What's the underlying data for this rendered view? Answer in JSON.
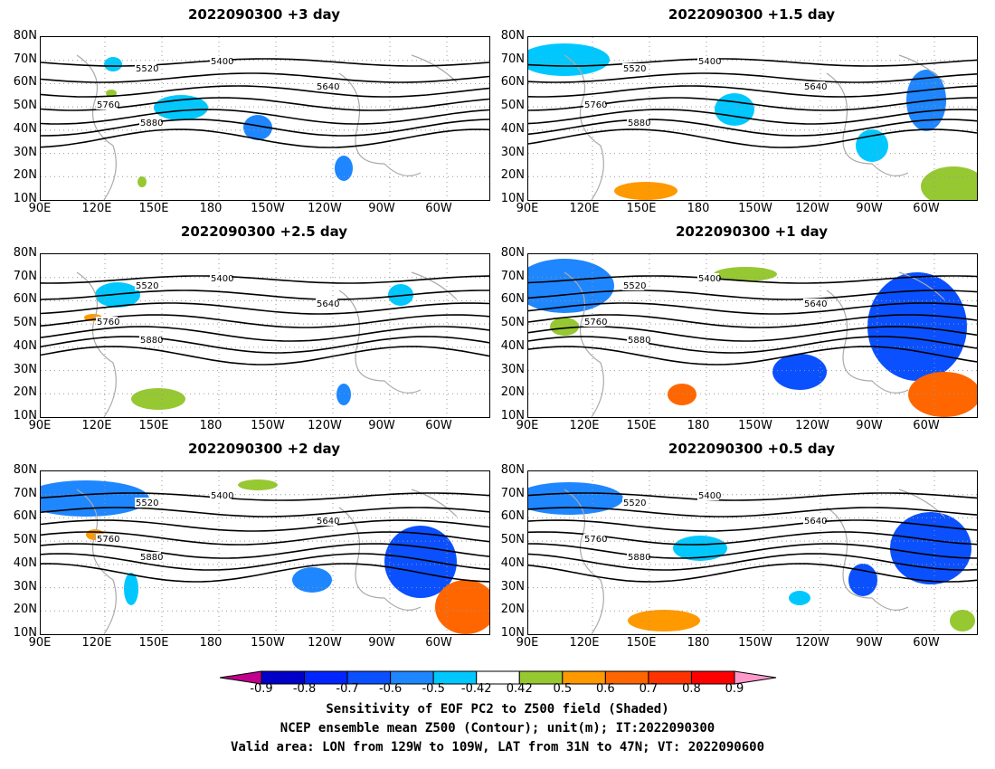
{
  "panels": [
    {
      "title": "2022090300  +3 day"
    },
    {
      "title": "2022090300  +1.5 day"
    },
    {
      "title": "2022090300  +2.5 day"
    },
    {
      "title": "2022090300  +1 day"
    },
    {
      "title": "2022090300  +2 day"
    },
    {
      "title": "2022090300  +0.5 day"
    }
  ],
  "lat_ticks": [
    "80N",
    "70N",
    "60N",
    "50N",
    "40N",
    "30N",
    "20N",
    "10N"
  ],
  "lon_ticks": [
    "90E",
    "120E",
    "150E",
    "180",
    "150W",
    "120W",
    "90W",
    "60W"
  ],
  "contour_labels": [
    "5400",
    "5520",
    "5640",
    "5760",
    "5880"
  ],
  "colorbar": {
    "levels": [
      "-0.9",
      "-0.8",
      "-0.7",
      "-0.6",
      "-0.5",
      "-0.42",
      "0.42",
      "0.5",
      "0.6",
      "0.7",
      "0.8",
      "0.9"
    ],
    "colors": [
      "#c2008e",
      "#0000c8",
      "#0025ff",
      "#0a50ff",
      "#1e86ff",
      "#00c8ff",
      "#ffffff",
      "#96c832",
      "#ff9900",
      "#ff6600",
      "#ff3300",
      "#ff0000",
      "#ff99cc"
    ]
  },
  "footer": {
    "line1": "Sensitivity of EOF PC2 to Z500 field (Shaded)",
    "line2": "NCEP ensemble mean Z500 (Contour); unit(m); IT:2022090300",
    "line3": "Valid area: LON from 129W to 109W, LAT from 31N to 47N; VT: 2022090600"
  }
}
